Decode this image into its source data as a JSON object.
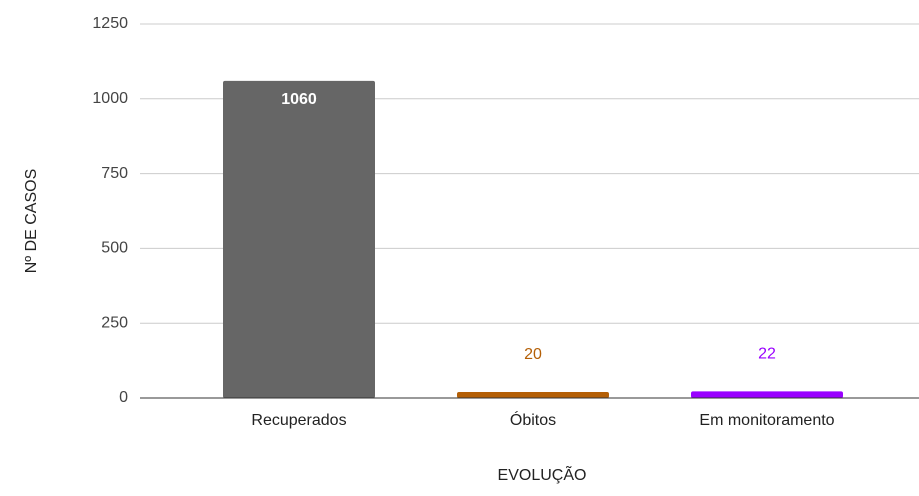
{
  "chart_data": {
    "type": "bar",
    "categories": [
      "Recuperados",
      "Óbitos",
      "Em monitoramento"
    ],
    "values": [
      1060,
      20,
      22
    ],
    "colors": [
      "#666666",
      "#b45f06",
      "#9900ff"
    ],
    "ylim": [
      0,
      1250
    ],
    "yticks": [
      0,
      250,
      500,
      750,
      1000,
      1250
    ],
    "grid": true,
    "x_label": "EVOLUÇÃO",
    "y_label": "Nº DE CASOS"
  }
}
